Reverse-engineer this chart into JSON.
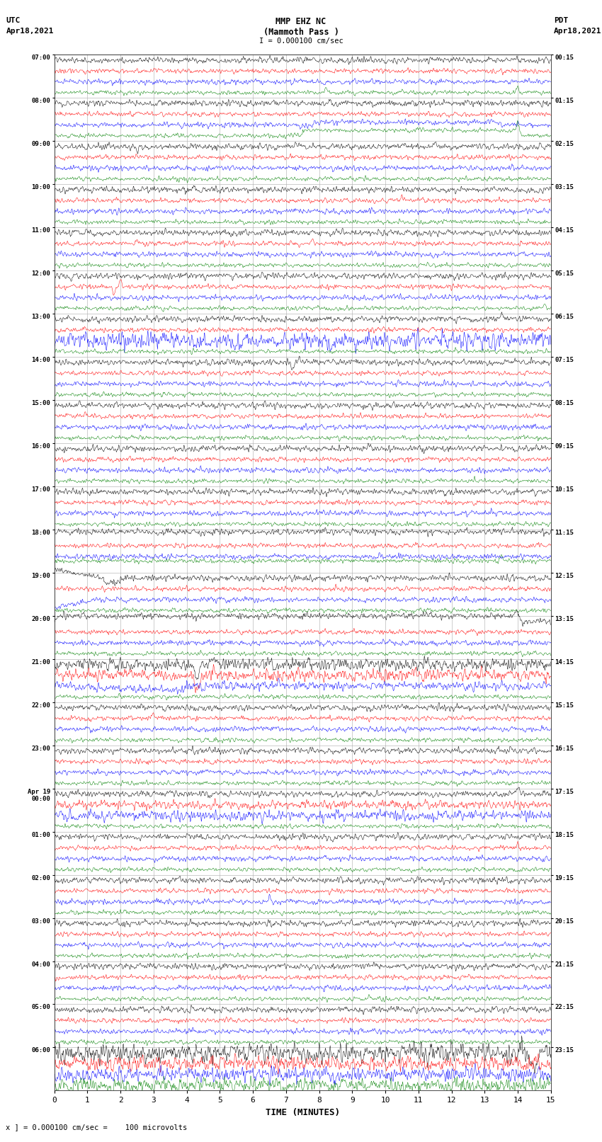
{
  "title_line1": "MMP EHZ NC",
  "title_line2": "(Mammoth Pass )",
  "title_line3": "I = 0.000100 cm/sec",
  "utc_label": "UTC",
  "utc_date": "Apr18,2021",
  "pdt_label": "PDT",
  "pdt_date": "Apr18,2021",
  "footer": "x ] = 0.000100 cm/sec =    100 microvolts",
  "xlabel": "TIME (MINUTES)",
  "left_times_utc": [
    "07:00",
    "08:00",
    "09:00",
    "10:00",
    "11:00",
    "12:00",
    "13:00",
    "14:00",
    "15:00",
    "16:00",
    "17:00",
    "18:00",
    "19:00",
    "20:00",
    "21:00",
    "22:00",
    "23:00",
    "Apr 19\n00:00",
    "01:00",
    "02:00",
    "03:00",
    "04:00",
    "05:00",
    "06:00"
  ],
  "right_times_pdt": [
    "00:15",
    "01:15",
    "02:15",
    "03:15",
    "04:15",
    "05:15",
    "06:15",
    "07:15",
    "08:15",
    "09:15",
    "10:15",
    "11:15",
    "12:15",
    "13:15",
    "14:15",
    "15:15",
    "16:15",
    "17:15",
    "18:15",
    "19:15",
    "20:15",
    "21:15",
    "22:15",
    "23:15"
  ],
  "n_rows": 24,
  "n_traces_per_row": 4,
  "trace_colors": [
    "black",
    "red",
    "blue",
    "green"
  ],
  "bg_color": "white",
  "grid_color": "#aaaaaa",
  "fig_width": 8.5,
  "fig_height": 16.13,
  "xmin": 0,
  "xmax": 15,
  "xticks": [
    0,
    1,
    2,
    3,
    4,
    5,
    6,
    7,
    8,
    9,
    10,
    11,
    12,
    13,
    14,
    15
  ]
}
